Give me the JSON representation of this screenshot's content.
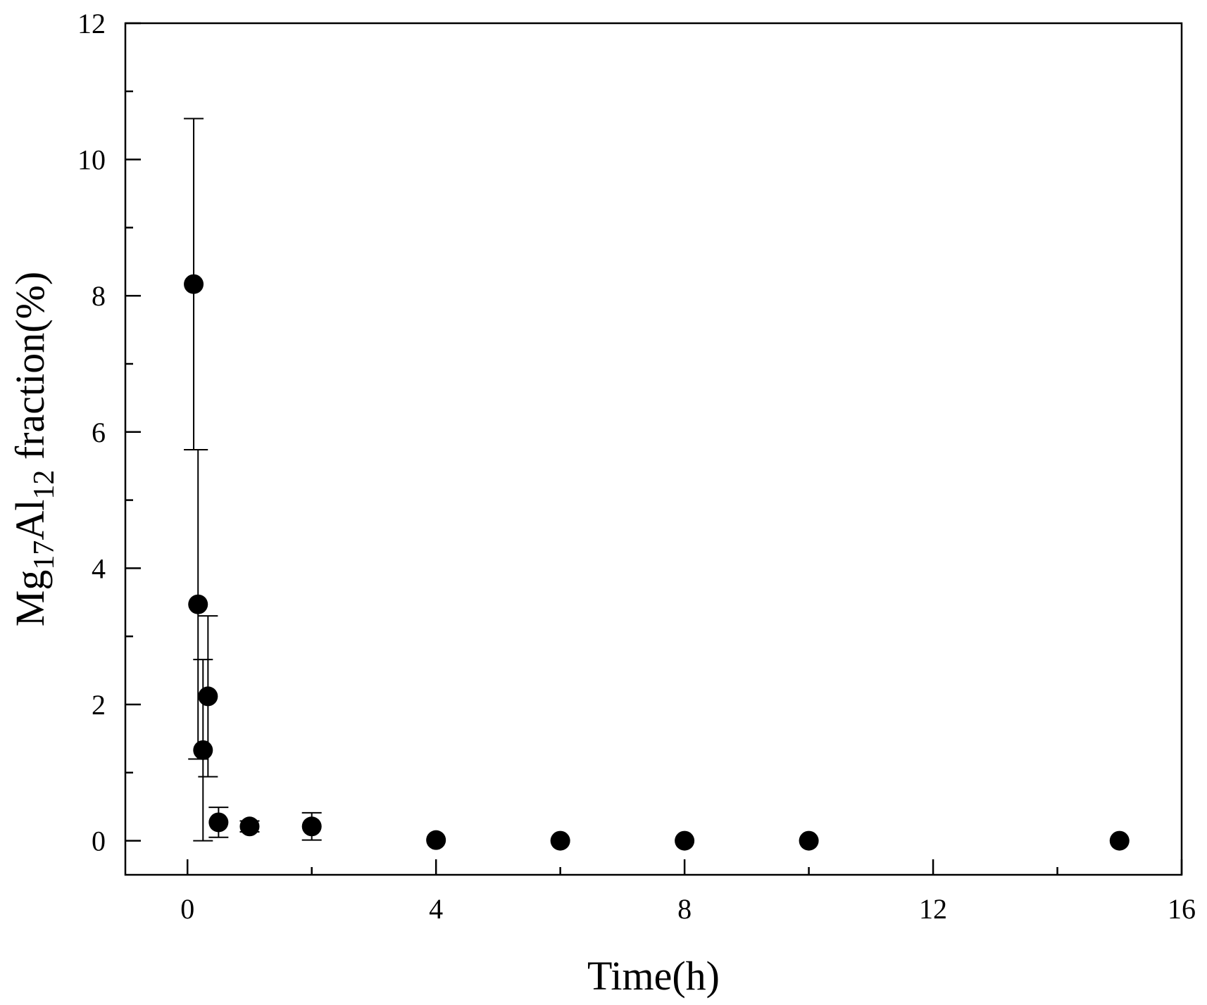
{
  "chart_data": {
    "type": "scatter",
    "title": "",
    "xlabel": "Time(h)",
    "ylabel": {
      "prefix": "Mg",
      "sub1": "17",
      "mid": "Al",
      "sub2": "12",
      "suffix": " fraction(%)"
    },
    "xlim": [
      -1,
      16
    ],
    "ylim": [
      -0.5,
      12
    ],
    "x_ticks": [
      0,
      4,
      8,
      12,
      16
    ],
    "x_minor_ticks": [
      2,
      6,
      10,
      14
    ],
    "y_ticks": [
      0,
      2,
      4,
      6,
      8,
      10,
      12
    ],
    "y_minor_ticks": [
      1,
      3,
      5,
      7,
      9,
      11
    ],
    "grid": false,
    "marker_color": "#000000",
    "points": [
      {
        "x": 0.1,
        "y": 8.17,
        "err_low": 2.43,
        "err_high": 2.43
      },
      {
        "x": 0.17,
        "y": 3.47,
        "err_low": 2.27,
        "err_high": 2.27
      },
      {
        "x": 0.25,
        "y": 1.33,
        "err_low": 1.33,
        "err_high": 1.33
      },
      {
        "x": 0.33,
        "y": 2.12,
        "err_low": 1.18,
        "err_high": 1.18
      },
      {
        "x": 0.5,
        "y": 0.27,
        "err_low": 0.22,
        "err_high": 0.22
      },
      {
        "x": 1,
        "y": 0.21,
        "err_low": 0.08,
        "err_high": 0.08
      },
      {
        "x": 2,
        "y": 0.21,
        "err_low": 0.2,
        "err_high": 0.2
      },
      {
        "x": 4,
        "y": 0.01,
        "err_low": 0,
        "err_high": 0
      },
      {
        "x": 6,
        "y": 0.0,
        "err_low": 0,
        "err_high": 0
      },
      {
        "x": 8,
        "y": 0.0,
        "err_low": 0,
        "err_high": 0
      },
      {
        "x": 10,
        "y": 0.0,
        "err_low": 0,
        "err_high": 0
      },
      {
        "x": 15,
        "y": 0.0,
        "err_low": 0,
        "err_high": 0
      }
    ]
  }
}
